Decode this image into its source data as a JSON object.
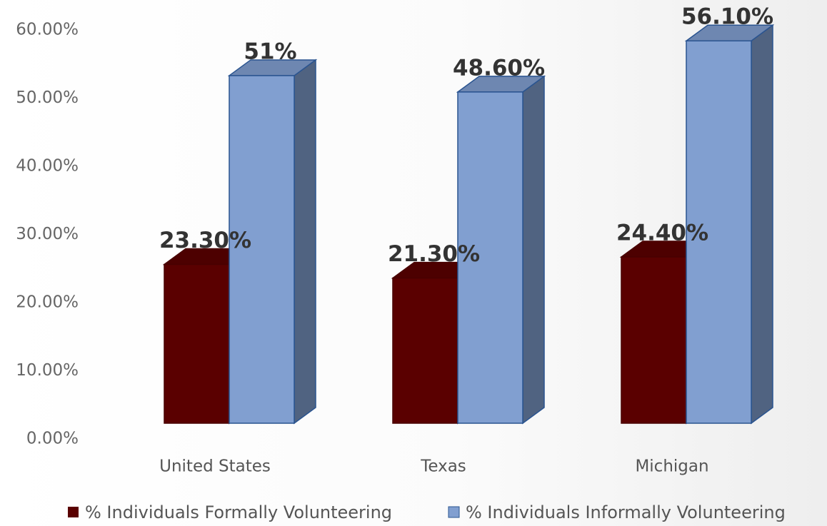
{
  "chart_data": {
    "type": "bar3d",
    "categories": [
      "United States",
      "Texas",
      "Michigan"
    ],
    "series": [
      {
        "name": "% Individuals Formally Volunteering",
        "color": "#5a0000",
        "values": [
          23.3,
          21.3,
          24.4
        ],
        "value_labels": [
          "23.30%",
          "21.30%",
          "24.40%"
        ]
      },
      {
        "name": "% Individuals Informally Volunteering",
        "color": "#819fd0",
        "values": [
          51,
          48.6,
          56.1
        ],
        "value_labels": [
          "51%",
          "48.60%",
          "56.10%"
        ]
      }
    ],
    "ylim": [
      0,
      60
    ],
    "yticks": [
      {
        "value": 0,
        "label": "0.00%"
      },
      {
        "value": 10,
        "label": "10.00%"
      },
      {
        "value": 20,
        "label": "20.00%"
      },
      {
        "value": 30,
        "label": "30.00%"
      },
      {
        "value": 40,
        "label": "40.00%"
      },
      {
        "value": 50,
        "label": "50.00%"
      },
      {
        "value": 60,
        "label": "60.00%"
      }
    ],
    "legend": "bottom"
  }
}
